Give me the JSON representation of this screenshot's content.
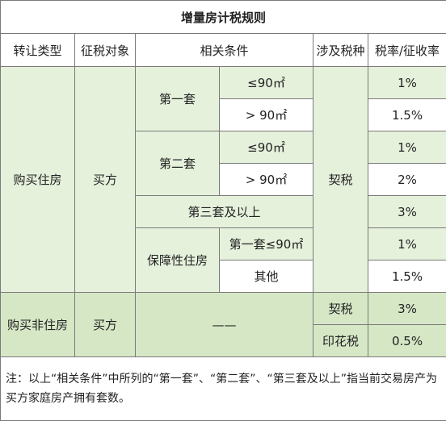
{
  "title": "增量房计税规则",
  "headers": [
    "转让类型",
    "征税对象",
    "相关条件",
    "涉及税种",
    "税率/征收率"
  ],
  "residential": {
    "type": "购买住房",
    "object": "买方",
    "first": "第一套",
    "second": "第二套",
    "le90": "≤90㎡",
    "gt90": "> 90㎡",
    "third": "第三套及以上",
    "affordable": "保障性住房",
    "aff_first": "第一套≤90㎡",
    "aff_other": "其他",
    "tax": "契税",
    "rates": [
      "1%",
      "1.5%",
      "1%",
      "2%",
      "3%",
      "1%",
      "1.5%"
    ]
  },
  "nonresidential": {
    "type": "购买非住房",
    "object": "买方",
    "condition": "——",
    "tax1": "契税",
    "rate1": "3%",
    "tax2": "印花税",
    "rate2": "0.5%"
  },
  "note": "注：以上“相关条件”中所列的“第一套”、“第二套”、“第三套及以上”指当前交易房产为买方家庭房产拥有套数。"
}
